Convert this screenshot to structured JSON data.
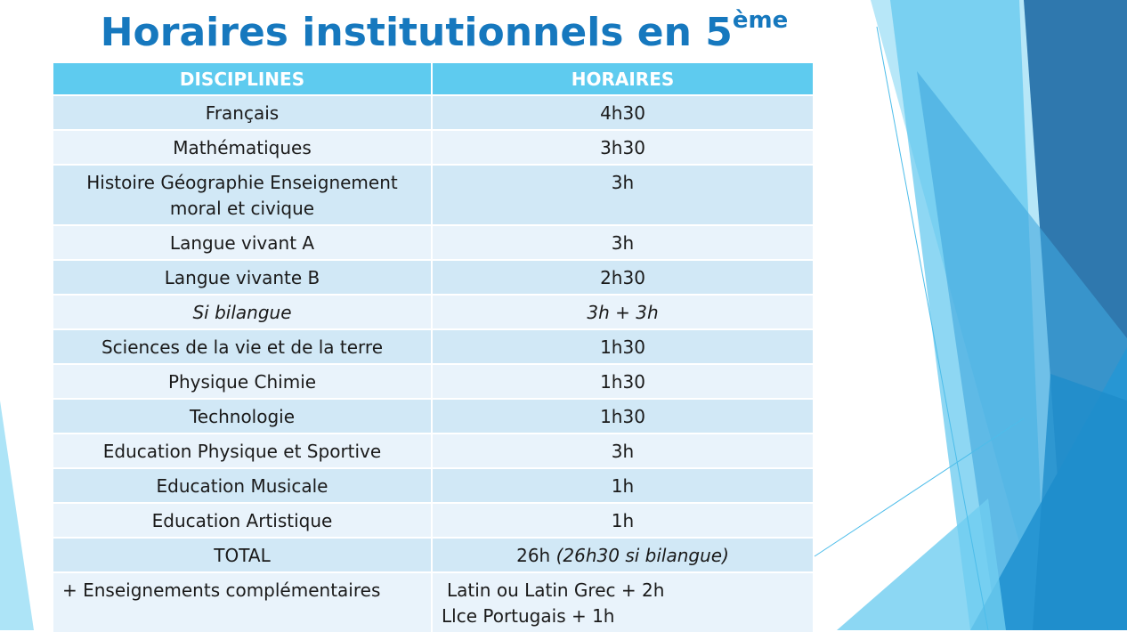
{
  "title": {
    "main": "Horaires institutionnels en 5",
    "superscript": "ème"
  },
  "table": {
    "headers": [
      "DISCIPLINES",
      "HORAIRES"
    ],
    "rows": [
      {
        "discipline": "Français",
        "hours": "4h30"
      },
      {
        "discipline": "Mathématiques",
        "hours": "3h30"
      },
      {
        "discipline": "Histoire Géographie Enseignement moral et civique",
        "hours": "3h"
      },
      {
        "discipline": "Langue vivant A",
        "hours": "3h"
      },
      {
        "discipline": "Langue vivante B",
        "hours": "2h30"
      },
      {
        "discipline": "Si bilangue",
        "hours": "3h + 3h"
      },
      {
        "discipline": "Sciences de la vie et de la terre",
        "hours": "1h30"
      },
      {
        "discipline": "Physique Chimie",
        "hours": "1h30"
      },
      {
        "discipline": "Technologie",
        "hours": "1h30"
      },
      {
        "discipline": "Education Physique et Sportive",
        "hours": "3h"
      },
      {
        "discipline": "Education Musicale",
        "hours": "1h"
      },
      {
        "discipline": "Education Artistique",
        "hours": "1h"
      }
    ],
    "total": {
      "label": "TOTAL",
      "hours": "26h",
      "note": "(26h30 si bilangue)"
    },
    "extra": {
      "label": "+ Enseignements complémentaires",
      "lines": [
        "Latin ou Latin Grec + 2h",
        "Llce Portugais + 1h"
      ]
    }
  },
  "colors": {
    "title": "#1678BE",
    "header_bg": "#5ECBEF",
    "row_dark": "#D1E8F6",
    "row_light": "#E9F3FB"
  }
}
